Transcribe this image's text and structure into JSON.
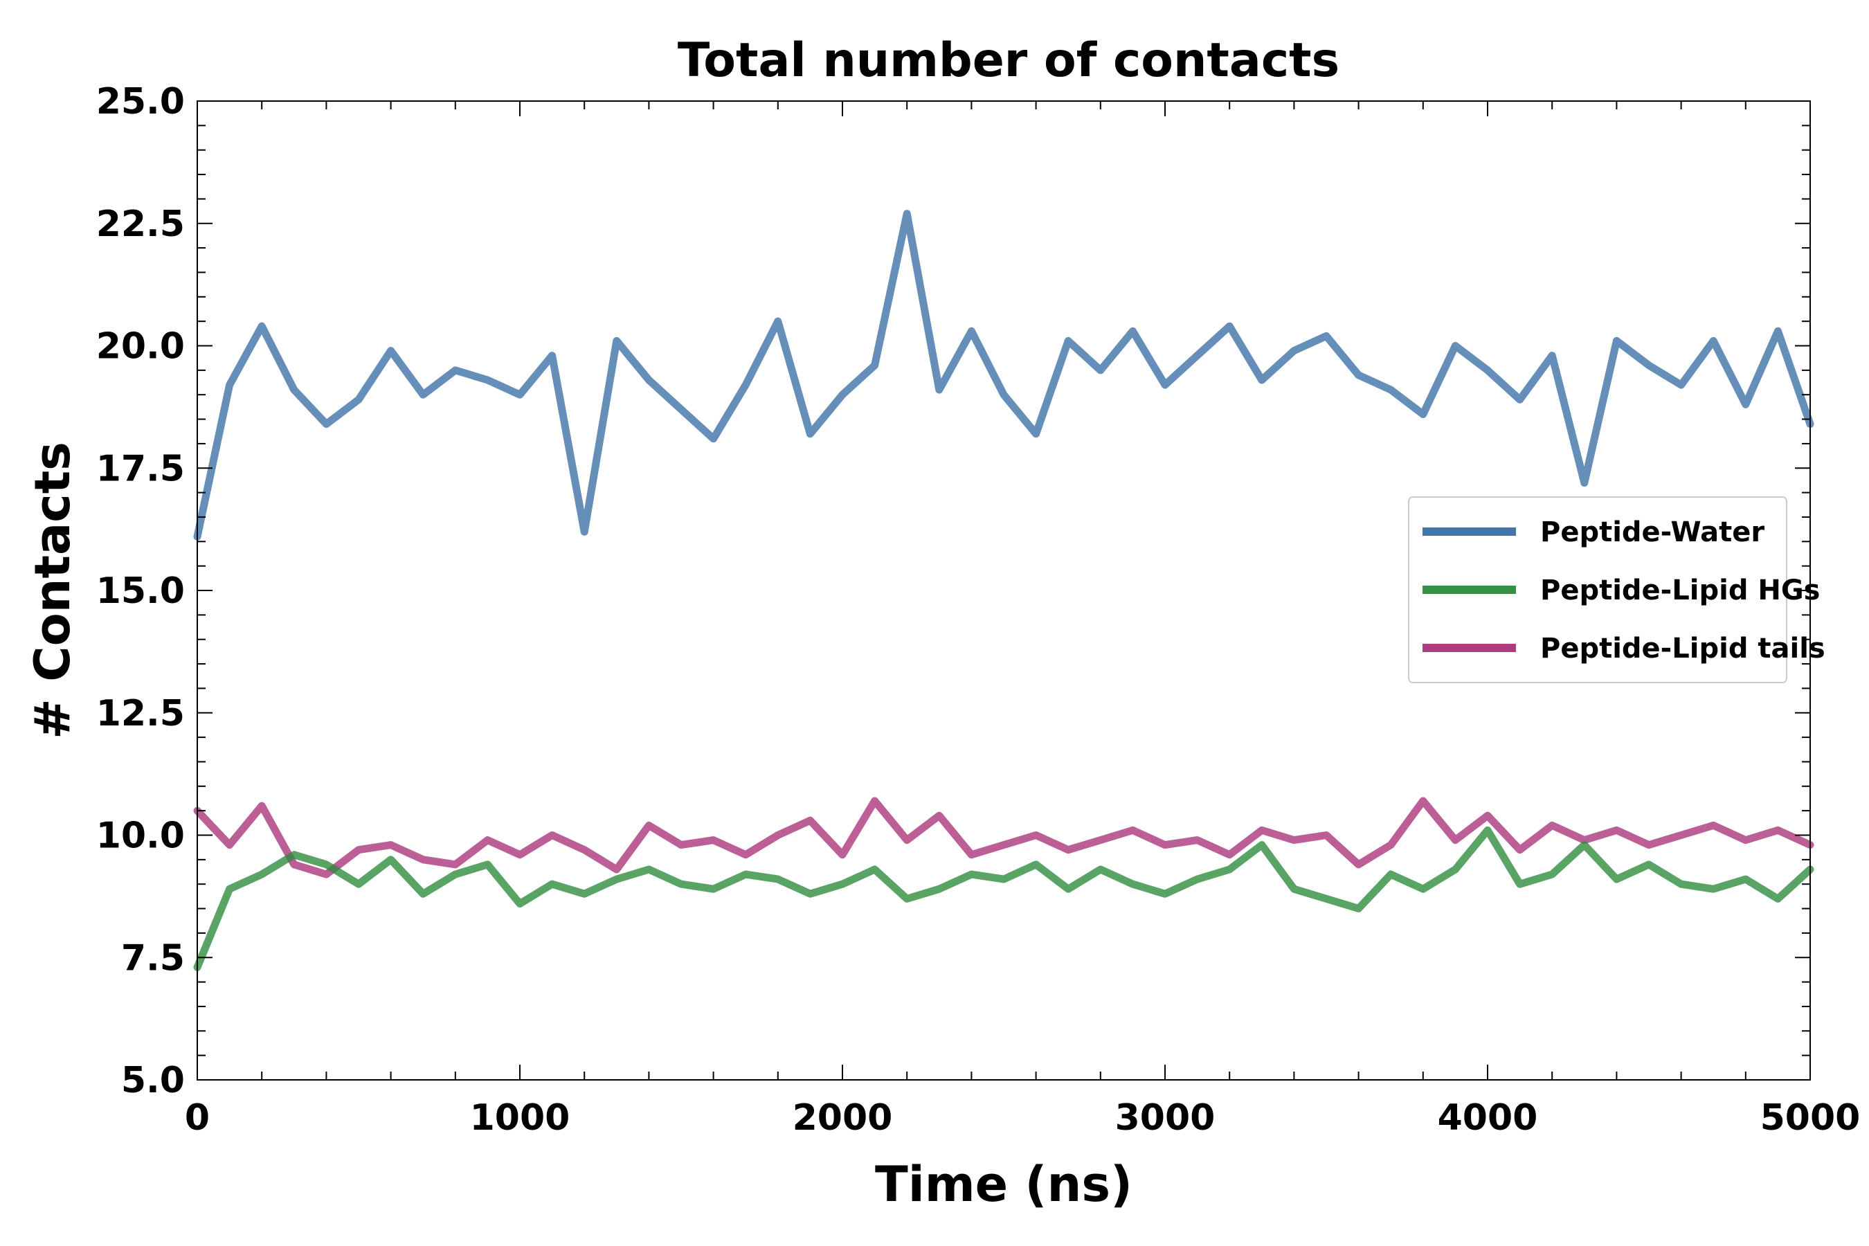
{
  "chart_data": {
    "type": "line",
    "title": "Total number of contacts",
    "xlabel": "Time (ns)",
    "ylabel": "# Contacts",
    "xlim": [
      0,
      5000
    ],
    "ylim": [
      5.0,
      25.0
    ],
    "xticks": [
      0,
      1000,
      2000,
      3000,
      4000,
      5000
    ],
    "xtick_labels": [
      "0",
      "1000",
      "2000",
      "3000",
      "4000",
      "5000"
    ],
    "yticks": [
      5.0,
      7.5,
      10.0,
      12.5,
      15.0,
      17.5,
      20.0,
      22.5,
      25.0
    ],
    "ytick_labels": [
      "5.0",
      "7.5",
      "10.0",
      "12.5",
      "15.0",
      "17.5",
      "20.0",
      "22.5",
      "25.0"
    ],
    "grid": false,
    "legend_position": "center-right",
    "series": [
      {
        "name": "Peptide-Water",
        "color": "#3a6fa5",
        "x": [
          0,
          100,
          200,
          300,
          400,
          500,
          600,
          700,
          800,
          900,
          1000,
          1100,
          1200,
          1300,
          1400,
          1500,
          1600,
          1700,
          1800,
          1900,
          2000,
          2100,
          2200,
          2300,
          2400,
          2500,
          2600,
          2700,
          2800,
          2900,
          3000,
          3100,
          3200,
          3300,
          3400,
          3500,
          3600,
          3700,
          3800,
          3900,
          4000,
          4100,
          4200,
          4300,
          4400,
          4500,
          4600,
          4700,
          4800,
          4900,
          5000
        ],
        "values": [
          16.1,
          19.2,
          20.4,
          19.1,
          18.4,
          18.9,
          19.9,
          19.0,
          19.5,
          19.3,
          19.0,
          19.8,
          16.2,
          20.1,
          19.3,
          18.7,
          18.1,
          19.2,
          20.5,
          18.2,
          19.0,
          19.6,
          22.7,
          19.1,
          20.3,
          19.0,
          18.2,
          20.1,
          19.5,
          20.3,
          19.2,
          19.8,
          20.4,
          19.3,
          19.9,
          20.2,
          19.4,
          19.1,
          18.6,
          20.0,
          19.5,
          18.9,
          19.8,
          17.2,
          20.1,
          19.6,
          19.2,
          20.1,
          18.8,
          20.3,
          18.4
        ]
      },
      {
        "name": "Peptide-Lipid HGs",
        "color": "#2a8b3a",
        "x": [
          0,
          100,
          200,
          300,
          400,
          500,
          600,
          700,
          800,
          900,
          1000,
          1100,
          1200,
          1300,
          1400,
          1500,
          1600,
          1700,
          1800,
          1900,
          2000,
          2100,
          2200,
          2300,
          2400,
          2500,
          2600,
          2700,
          2800,
          2900,
          3000,
          3100,
          3200,
          3300,
          3400,
          3500,
          3600,
          3700,
          3800,
          3900,
          4000,
          4100,
          4200,
          4300,
          4400,
          4500,
          4600,
          4700,
          4800,
          4900,
          5000
        ],
        "values": [
          7.3,
          8.9,
          9.2,
          9.6,
          9.4,
          9.0,
          9.5,
          8.8,
          9.2,
          9.4,
          8.6,
          9.0,
          8.8,
          9.1,
          9.3,
          9.0,
          8.9,
          9.2,
          9.1,
          8.8,
          9.0,
          9.3,
          8.7,
          8.9,
          9.2,
          9.1,
          9.4,
          8.9,
          9.3,
          9.0,
          8.8,
          9.1,
          9.3,
          9.8,
          8.9,
          8.7,
          8.5,
          9.2,
          8.9,
          9.3,
          10.1,
          9.0,
          9.2,
          9.8,
          9.1,
          9.4,
          9.0,
          8.9,
          9.1,
          8.7,
          9.3
        ]
      },
      {
        "name": "Peptide-Lipid tails",
        "color": "#a83278",
        "x": [
          0,
          100,
          200,
          300,
          400,
          500,
          600,
          700,
          800,
          900,
          1000,
          1100,
          1200,
          1300,
          1400,
          1500,
          1600,
          1700,
          1800,
          1900,
          2000,
          2100,
          2200,
          2300,
          2400,
          2500,
          2600,
          2700,
          2800,
          2900,
          3000,
          3100,
          3200,
          3300,
          3400,
          3500,
          3600,
          3700,
          3800,
          3900,
          4000,
          4100,
          4200,
          4300,
          4400,
          4500,
          4600,
          4700,
          4800,
          4900,
          5000
        ],
        "values": [
          10.5,
          9.8,
          10.6,
          9.4,
          9.2,
          9.7,
          9.8,
          9.5,
          9.4,
          9.9,
          9.6,
          10.0,
          9.7,
          9.3,
          10.2,
          9.8,
          9.9,
          9.6,
          10.0,
          10.3,
          9.6,
          10.7,
          9.9,
          10.4,
          9.6,
          9.8,
          10.0,
          9.7,
          9.9,
          10.1,
          9.8,
          9.9,
          9.6,
          10.1,
          9.9,
          10.0,
          9.4,
          9.8,
          10.7,
          9.9,
          10.4,
          9.7,
          10.2,
          9.9,
          10.1,
          9.8,
          10.0,
          10.2,
          9.9,
          10.1,
          9.8
        ]
      }
    ]
  }
}
